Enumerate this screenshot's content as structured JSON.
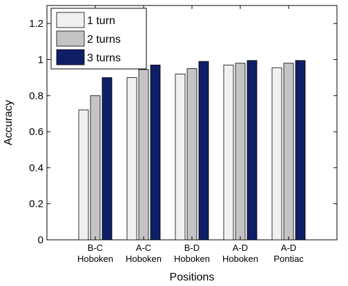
{
  "chart_data": {
    "type": "bar",
    "categories": [
      [
        "B-C",
        "Hoboken"
      ],
      [
        "A-C",
        "Hoboken"
      ],
      [
        "B-D",
        "Hoboken"
      ],
      [
        "A-D",
        "Hoboken"
      ],
      [
        "A-D",
        "Pontiac"
      ]
    ],
    "series": [
      {
        "name": "1 turn",
        "color": "#f0f0f0",
        "values": [
          0.72,
          0.9,
          0.92,
          0.97,
          0.955
        ]
      },
      {
        "name": "2 turns",
        "color": "#c4c4c4",
        "values": [
          0.8,
          0.945,
          0.95,
          0.98,
          0.98
        ]
      },
      {
        "name": "3 turns",
        "color": "#0f1f66",
        "values": [
          0.9,
          0.97,
          0.99,
          0.995,
          0.995
        ]
      }
    ],
    "title": "",
    "xlabel": "Positions",
    "ylabel": "Accuracy",
    "ylim": [
      0,
      1.3
    ],
    "yticks": [
      0,
      0.2,
      0.4,
      0.6,
      0.8,
      1,
      1.2
    ],
    "ytick_labels": [
      "0",
      "0.2",
      "0.4",
      "0.6",
      "0.8",
      "1",
      "1.2"
    ],
    "grid": false,
    "legend_position": "top-left"
  }
}
